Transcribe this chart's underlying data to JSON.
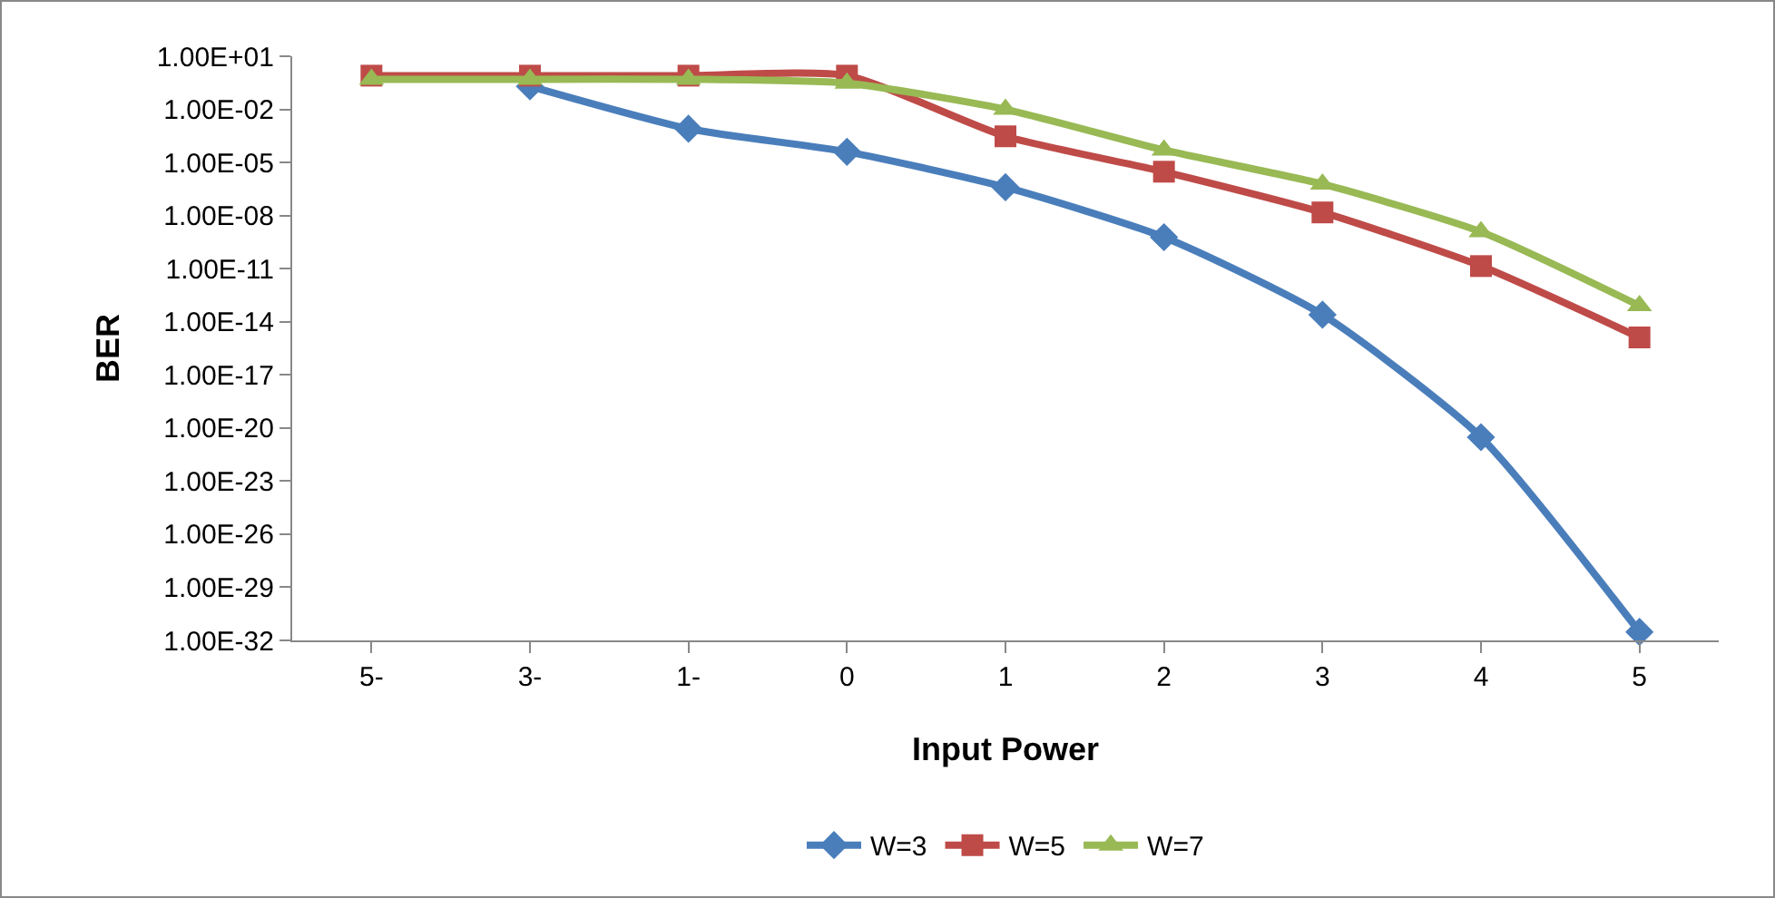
{
  "chart_data": {
    "type": "line",
    "xlabel": "Input Power",
    "ylabel": "BER",
    "log": "y",
    "grid": false,
    "legend": "bottom",
    "categories": [
      "5-",
      "3-",
      "1-",
      "0",
      "1",
      "2",
      "3",
      "4",
      "5"
    ],
    "ylim": [
      1e-32,
      10.0
    ],
    "yticks": [
      {
        "value": 10.0,
        "label": "1.00E+01"
      },
      {
        "value": 0.01,
        "label": "1.00E-02"
      },
      {
        "value": 1e-05,
        "label": "1.00E-05"
      },
      {
        "value": 1e-08,
        "label": "1.00E-08"
      },
      {
        "value": 1e-11,
        "label": "1.00E-11"
      },
      {
        "value": 1e-14,
        "label": "1.00E-14"
      },
      {
        "value": 1e-17,
        "label": "1.00E-17"
      },
      {
        "value": 1e-20,
        "label": "1.00E-20"
      },
      {
        "value": 1e-23,
        "label": "1.00E-23"
      },
      {
        "value": 1e-26,
        "label": "1.00E-26"
      },
      {
        "value": 1e-29,
        "label": "1.00E-29"
      },
      {
        "value": 1e-32,
        "label": "1.00E-32"
      }
    ],
    "series": [
      {
        "name": "W=3",
        "color": "#4a7ebb",
        "marker": "diamond",
        "values": [
          null,
          0.2,
          0.0008,
          4e-05,
          4e-07,
          6e-10,
          2.5e-14,
          3e-21,
          3e-32
        ]
      },
      {
        "name": "W=5",
        "color": "#be4b48",
        "marker": "square",
        "values": [
          0.8,
          0.8,
          0.8,
          0.8,
          0.0003,
          3e-06,
          1.5e-08,
          1.4e-11,
          1.3e-15
        ]
      },
      {
        "name": "W=7",
        "color": "#98b954",
        "marker": "triangle",
        "values": [
          0.5,
          0.5,
          0.5,
          0.3,
          0.01,
          5e-05,
          6e-07,
          1.2e-09,
          8e-14
        ]
      }
    ]
  }
}
